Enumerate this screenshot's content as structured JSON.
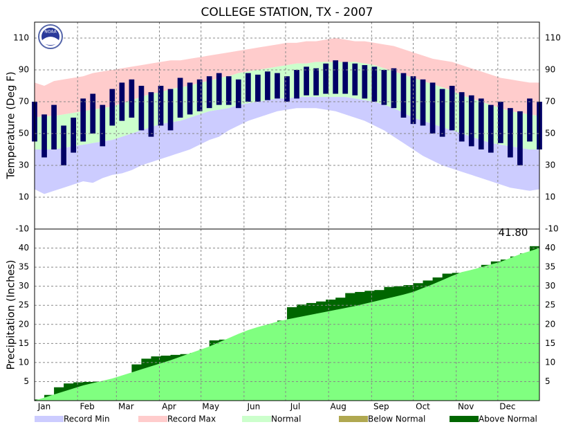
{
  "logo_text": "NOAA",
  "chart_data": [
    {
      "type": "temperature-bands",
      "title": "COLLEGE STATION, TX - 2007",
      "y_label": "Temperature (Deg F)",
      "x": [
        1,
        8,
        15,
        22,
        29,
        36,
        43,
        50,
        57,
        64,
        71,
        78,
        85,
        92,
        99,
        106,
        113,
        120,
        127,
        134,
        141,
        148,
        155,
        162,
        169,
        176,
        183,
        190,
        197,
        204,
        211,
        218,
        225,
        232,
        239,
        246,
        253,
        260,
        267,
        274,
        281,
        288,
        295,
        302,
        309,
        316,
        323,
        330,
        337,
        344,
        351,
        358,
        365
      ],
      "ylim": [
        -10,
        120
      ],
      "yticks": [
        -10,
        10,
        30,
        50,
        70,
        90,
        110
      ],
      "grid": true,
      "series": [
        {
          "name": "Record Min",
          "color": "#ccccff",
          "values": [
            15,
            12,
            14,
            16,
            18,
            20,
            19,
            22,
            24,
            25,
            27,
            30,
            32,
            34,
            36,
            38,
            40,
            43,
            46,
            48,
            52,
            55,
            58,
            60,
            62,
            64,
            65,
            66,
            66,
            66,
            65,
            64,
            62,
            60,
            58,
            55,
            52,
            48,
            44,
            40,
            36,
            33,
            30,
            28,
            26,
            24,
            22,
            20,
            18,
            16,
            15,
            14,
            15
          ]
        },
        {
          "name": "Record Max",
          "color": "#ffcccc",
          "values": [
            82,
            80,
            83,
            84,
            85,
            86,
            88,
            89,
            90,
            91,
            92,
            93,
            94,
            95,
            96,
            96,
            97,
            98,
            99,
            100,
            101,
            102,
            103,
            104,
            105,
            106,
            107,
            107,
            108,
            108,
            109,
            110,
            109,
            108,
            108,
            107,
            106,
            105,
            103,
            101,
            99,
            97,
            96,
            95,
            93,
            91,
            89,
            87,
            85,
            84,
            83,
            82,
            82
          ]
        },
        {
          "name": "Normal",
          "color": "#ccffcc",
          "high": [
            60,
            61,
            61,
            62,
            63,
            64,
            65,
            66,
            67,
            69,
            71,
            73,
            75,
            76,
            78,
            79,
            80,
            82,
            83,
            85,
            86,
            88,
            89,
            90,
            91,
            92,
            93,
            94,
            94,
            95,
            95,
            95,
            95,
            95,
            94,
            93,
            91,
            89,
            87,
            85,
            83,
            81,
            79,
            77,
            74,
            72,
            70,
            68,
            66,
            64,
            63,
            62,
            61
          ],
          "low": [
            40,
            40,
            40,
            41,
            42,
            43,
            44,
            45,
            46,
            48,
            50,
            52,
            54,
            56,
            57,
            58,
            60,
            62,
            64,
            65,
            66,
            68,
            69,
            70,
            71,
            72,
            72,
            73,
            73,
            73,
            73,
            73,
            73,
            72,
            71,
            70,
            68,
            66,
            63,
            60,
            58,
            56,
            54,
            52,
            50,
            48,
            46,
            44,
            43,
            42,
            41,
            40,
            40
          ]
        }
      ],
      "observed": {
        "color": "#000066",
        "high": [
          70,
          62,
          68,
          55,
          60,
          72,
          75,
          68,
          78,
          82,
          84,
          80,
          76,
          80,
          78,
          85,
          82,
          84,
          86,
          88,
          86,
          84,
          88,
          87,
          89,
          88,
          86,
          90,
          92,
          91,
          94,
          96,
          95,
          94,
          93,
          92,
          90,
          91,
          88,
          86,
          84,
          82,
          78,
          80,
          76,
          74,
          72,
          68,
          70,
          66,
          64,
          72,
          70
        ],
        "low": [
          45,
          35,
          40,
          30,
          38,
          45,
          50,
          42,
          55,
          58,
          60,
          52,
          48,
          55,
          52,
          60,
          62,
          64,
          66,
          68,
          68,
          66,
          70,
          70,
          71,
          72,
          70,
          72,
          74,
          74,
          75,
          75,
          75,
          74,
          72,
          70,
          68,
          66,
          60,
          56,
          55,
          50,
          48,
          52,
          45,
          42,
          40,
          38,
          44,
          35,
          30,
          45,
          40
        ]
      }
    },
    {
      "type": "cumulative-precip",
      "y_label": "Precipitation (Inches)",
      "x": [
        1,
        8,
        15,
        22,
        29,
        36,
        43,
        50,
        57,
        64,
        71,
        78,
        85,
        92,
        99,
        106,
        113,
        120,
        127,
        134,
        141,
        148,
        155,
        162,
        169,
        176,
        183,
        190,
        197,
        204,
        211,
        218,
        225,
        232,
        239,
        246,
        253,
        260,
        267,
        274,
        281,
        288,
        295,
        302,
        309,
        316,
        323,
        330,
        337,
        344,
        351,
        358,
        365
      ],
      "xlim": [
        1,
        365
      ],
      "xticks": [
        {
          "value": 1,
          "label": "Jan"
        },
        {
          "value": 32,
          "label": "Feb"
        },
        {
          "value": 60,
          "label": "Mar"
        },
        {
          "value": 91,
          "label": "Apr"
        },
        {
          "value": 121,
          "label": "May"
        },
        {
          "value": 152,
          "label": "Jun"
        },
        {
          "value": 182,
          "label": "Jul"
        },
        {
          "value": 213,
          "label": "Aug"
        },
        {
          "value": 244,
          "label": "Sep"
        },
        {
          "value": 274,
          "label": "Oct"
        },
        {
          "value": 305,
          "label": "Nov"
        },
        {
          "value": 335,
          "label": "Dec"
        }
      ],
      "ylim": [
        0,
        45
      ],
      "yticks": [
        5,
        10,
        15,
        20,
        25,
        30,
        35,
        40
      ],
      "grid": true,
      "normal": {
        "color": "#80ff80",
        "values": [
          0,
          0.8,
          1.6,
          2.4,
          3.2,
          4.0,
          4.6,
          5.2,
          5.8,
          6.6,
          7.4,
          8.2,
          9.0,
          9.8,
          10.6,
          11.5,
          12.4,
          13.3,
          14.2,
          15.3,
          16.4,
          17.5,
          18.5,
          19.3,
          20.0,
          20.7,
          21.3,
          21.8,
          22.3,
          22.8,
          23.3,
          23.8,
          24.3,
          24.8,
          25.4,
          26.0,
          26.6,
          27.2,
          27.8,
          28.5,
          29.5,
          30.5,
          31.6,
          32.7,
          33.7,
          34.3,
          35.0,
          35.7,
          36.4,
          37.4,
          38.4,
          39.2,
          40.0
        ]
      },
      "observed": {
        "values": [
          0.3,
          1.5,
          3.5,
          4.5,
          4.8,
          4.9,
          5.0,
          5.0,
          5.0,
          5.2,
          9.5,
          11.0,
          11.6,
          11.8,
          12.0,
          12.2,
          12.5,
          13.5,
          15.8,
          16.0,
          16.2,
          17.0,
          18.3,
          18.5,
          19.5,
          21.0,
          24.5,
          25.2,
          25.6,
          26.0,
          26.5,
          27.0,
          28.2,
          28.5,
          28.8,
          29.0,
          29.8,
          30.0,
          30.3,
          30.8,
          31.5,
          32.3,
          33.3,
          33.5,
          33.5,
          34.2,
          35.6,
          36.5,
          37.0,
          37.8,
          38.6,
          40.5,
          41.8
        ],
        "value_labels": [
          null,
          null,
          null,
          null,
          null,
          null,
          null,
          null,
          null,
          null,
          null,
          null,
          null,
          null,
          null,
          null,
          null,
          null,
          null,
          null,
          null,
          null,
          null,
          null,
          null,
          null,
          null,
          null,
          null,
          null,
          null,
          null,
          null,
          null,
          null,
          null,
          null,
          null,
          null,
          null,
          null,
          null,
          null,
          null,
          null,
          null,
          null,
          null,
          null,
          null,
          null,
          null,
          "41.80"
        ]
      },
      "fills": [
        {
          "name": "Below Normal",
          "color": "#b0a850"
        },
        {
          "name": "Above Normal",
          "color": "#006600"
        }
      ]
    }
  ]
}
